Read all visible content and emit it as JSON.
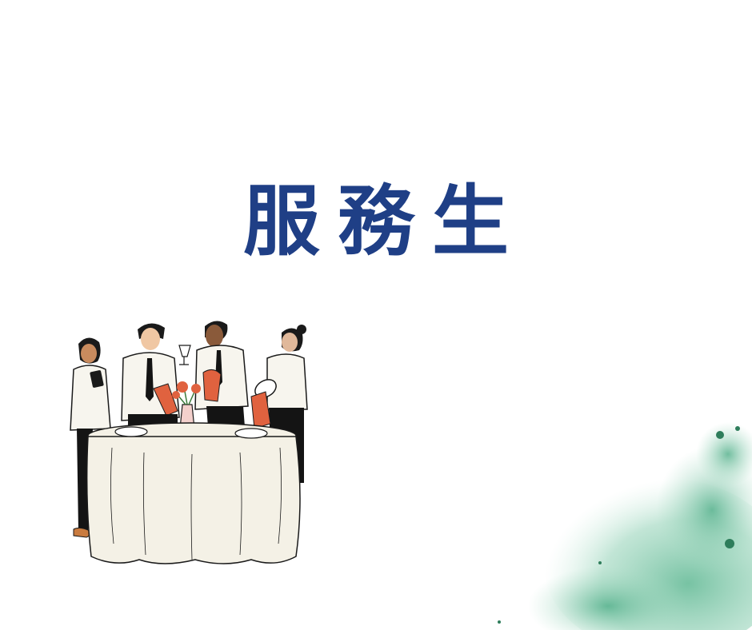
{
  "title": "服務生",
  "colors": {
    "title": "#1f3f86",
    "background": "#ffffff",
    "tablecloth": "#f4f1e6",
    "shirt": "#f7f5ee",
    "pants": "#141414",
    "napkin": "#e0623f",
    "skin": "#c98b5e",
    "watercolor": "#7cc6a8"
  },
  "illustration": {
    "icon": "waiters-around-table-illustration"
  },
  "decoration": {
    "icon": "green-watercolor-splash"
  }
}
